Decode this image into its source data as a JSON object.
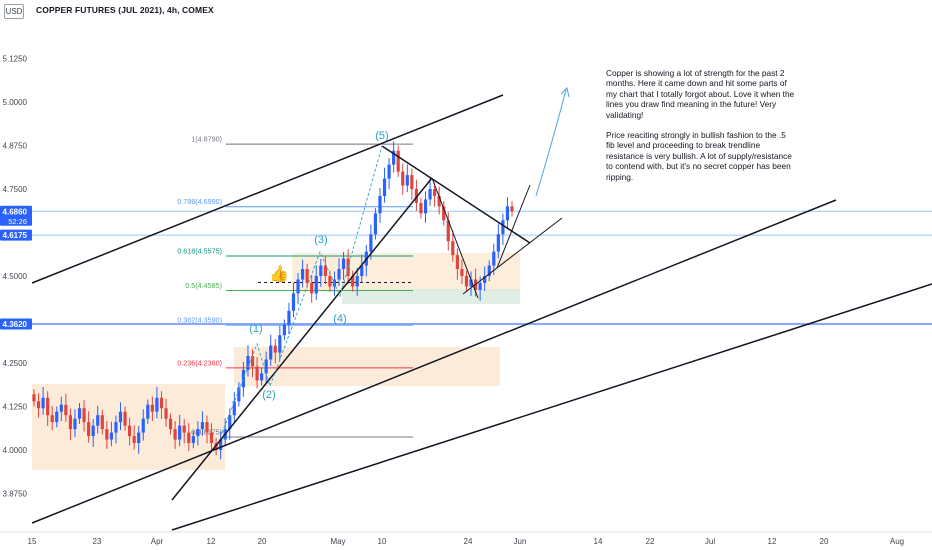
{
  "header": {
    "currency_badge": "USD",
    "title": "COPPER FUTURES (JUL 2021), 4h, COMEX"
  },
  "annotation": {
    "paragraph1": "Copper is showing a lot of strength for the past 2 months. Here it came down and hit some parts of my chart that I totally forgot about. Love it when the lines you draw find meaning in the future! Very validating!",
    "paragraph2": "Price reaciting strongly in bullish fashion to the .5 fib level and proceeding to break trendline resistance is very bullish. A lot of supply/resistance to contend with, but it's no secret copper has been ripping."
  },
  "chart_data": {
    "type": "candlestick",
    "symbol": "COPPER FUTURES (JUL 2021)",
    "timeframe": "4h",
    "exchange": "COMEX",
    "ylim": [
      3.8,
      5.22
    ],
    "y_ticks": [
      "5.1250",
      "5.0000",
      "4.8750",
      "4.7500",
      "4.5000",
      "4.2500",
      "4.1250",
      "4.0000",
      "3.8750"
    ],
    "x_ticks": [
      "15",
      "23",
      "Apr",
      "12",
      "20",
      "May",
      "10",
      "24",
      "Jun",
      "14",
      "22",
      "Jul",
      "12",
      "20",
      "Aug"
    ],
    "price_tags": [
      {
        "value": "4.6860",
        "sub": "52:26",
        "color": "#2962ff"
      },
      {
        "value": "4.6175",
        "color": "#2962ff"
      },
      {
        "value": "4.3620",
        "color": "#2962ff"
      }
    ],
    "fib_levels": [
      {
        "label": "1(4.8790)",
        "value": 4.879,
        "color": "#787b86"
      },
      {
        "label": "0.786(4.6990)",
        "value": 4.699,
        "color": "#5b9cf6"
      },
      {
        "label": "0.618(4.5575)",
        "value": 4.5575,
        "color": "#089981"
      },
      {
        "label": "0.5(4.4585)",
        "value": 4.4585,
        "color": "#4caf50"
      },
      {
        "label": "0.382(4.3590)",
        "value": 4.359,
        "color": "#5b9cf6"
      },
      {
        "label": "0.236(4.2360)",
        "value": 4.236,
        "color": "#f23645"
      },
      {
        "label": "0(4.0375)",
        "value": 4.0375,
        "color": "#787b86"
      }
    ],
    "wave_labels": [
      "(1)",
      "(2)",
      "(3)",
      "(4)",
      "(5)"
    ],
    "close_series": [
      4.14,
      4.12,
      4.15,
      4.1,
      4.08,
      4.11,
      4.13,
      4.1,
      4.06,
      4.09,
      4.12,
      4.08,
      4.04,
      4.07,
      4.1,
      4.06,
      4.03,
      4.05,
      4.08,
      4.11,
      4.07,
      4.04,
      4.02,
      4.05,
      4.09,
      4.13,
      4.11,
      4.15,
      4.12,
      4.09,
      4.06,
      4.03,
      4.07,
      4.05,
      4.02,
      4.04,
      4.06,
      4.08,
      4.05,
      4.02,
      4.0,
      4.03,
      4.06,
      4.1,
      4.14,
      4.18,
      4.23,
      4.27,
      4.24,
      4.2,
      4.22,
      4.26,
      4.3,
      4.28,
      4.33,
      4.36,
      4.4,
      4.45,
      4.49,
      4.52,
      4.48,
      4.45,
      4.5,
      4.53,
      4.5,
      4.47,
      4.49,
      4.52,
      4.55,
      4.5,
      4.47,
      4.5,
      4.53,
      4.57,
      4.62,
      4.68,
      4.73,
      4.78,
      4.82,
      4.86,
      4.8,
      4.76,
      4.79,
      4.75,
      4.71,
      4.68,
      4.72,
      4.75,
      4.73,
      4.7,
      4.66,
      4.6,
      4.56,
      4.52,
      4.5,
      4.47,
      4.49,
      4.46,
      4.48,
      4.5,
      4.53,
      4.57,
      4.62,
      4.66,
      4.7,
      4.686
    ]
  }
}
